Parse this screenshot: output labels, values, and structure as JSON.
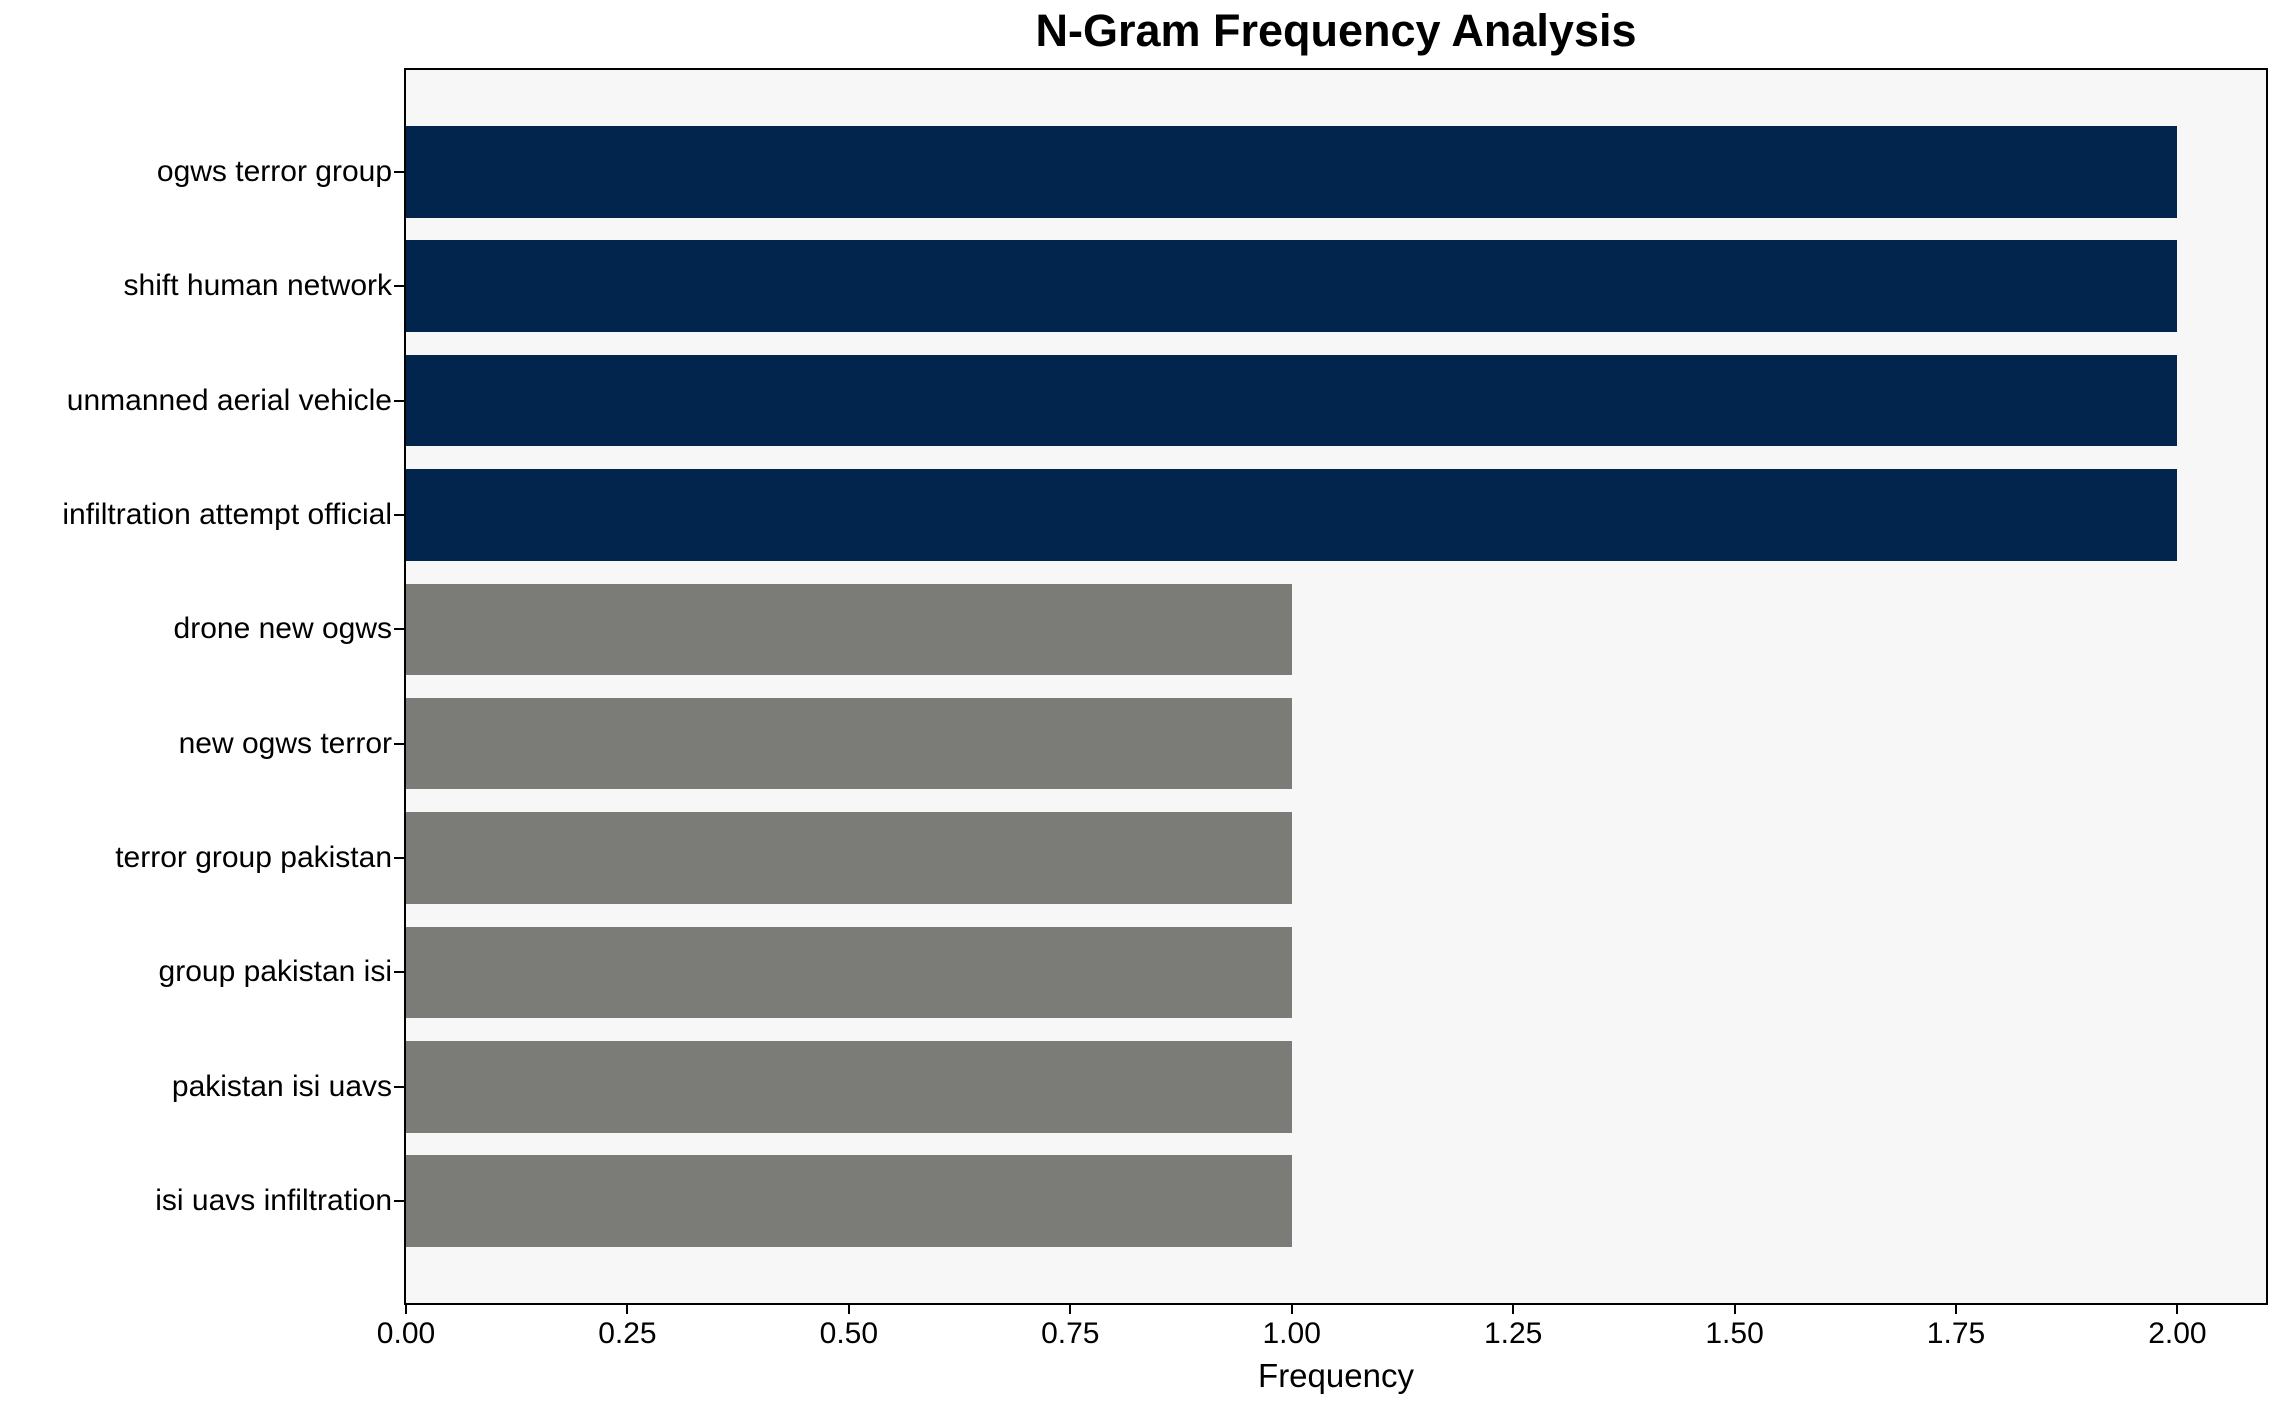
{
  "chart_data": {
    "type": "bar",
    "orientation": "horizontal",
    "title": "N-Gram Frequency Analysis",
    "xlabel": "Frequency",
    "ylabel": "",
    "categories": [
      "ogws terror group",
      "shift human network",
      "unmanned aerial vehicle",
      "infiltration attempt official",
      "drone new ogws",
      "new ogws terror",
      "terror group pakistan",
      "group pakistan isi",
      "pakistan isi uavs",
      "isi uavs infiltration"
    ],
    "values": [
      2,
      2,
      2,
      2,
      1,
      1,
      1,
      1,
      1,
      1
    ],
    "bar_colors": [
      "#02254E",
      "#02254E",
      "#02254E",
      "#02254E",
      "#7B7B78",
      "#7B7B78",
      "#7B7B78",
      "#7B7B78",
      "#7B7B78",
      "#7B7B78"
    ],
    "xlim": [
      0,
      2.1
    ],
    "xticks": {
      "values": [
        0,
        0.25,
        0.5,
        0.75,
        1,
        1.25,
        1.5,
        1.75,
        2
      ],
      "labels": [
        "0.00",
        "0.25",
        "0.50",
        "0.75",
        "1.00",
        "1.25",
        "1.50",
        "1.75",
        "2.00"
      ]
    },
    "grid": false,
    "legend": null,
    "colors": {
      "high_freq_bar": "#02254E",
      "low_freq_bar": "#7B7B78",
      "plot_background": "#F7F7F8",
      "figure_background": "#FFFFFF",
      "axis_line": "#000000",
      "text": "#000000"
    }
  }
}
